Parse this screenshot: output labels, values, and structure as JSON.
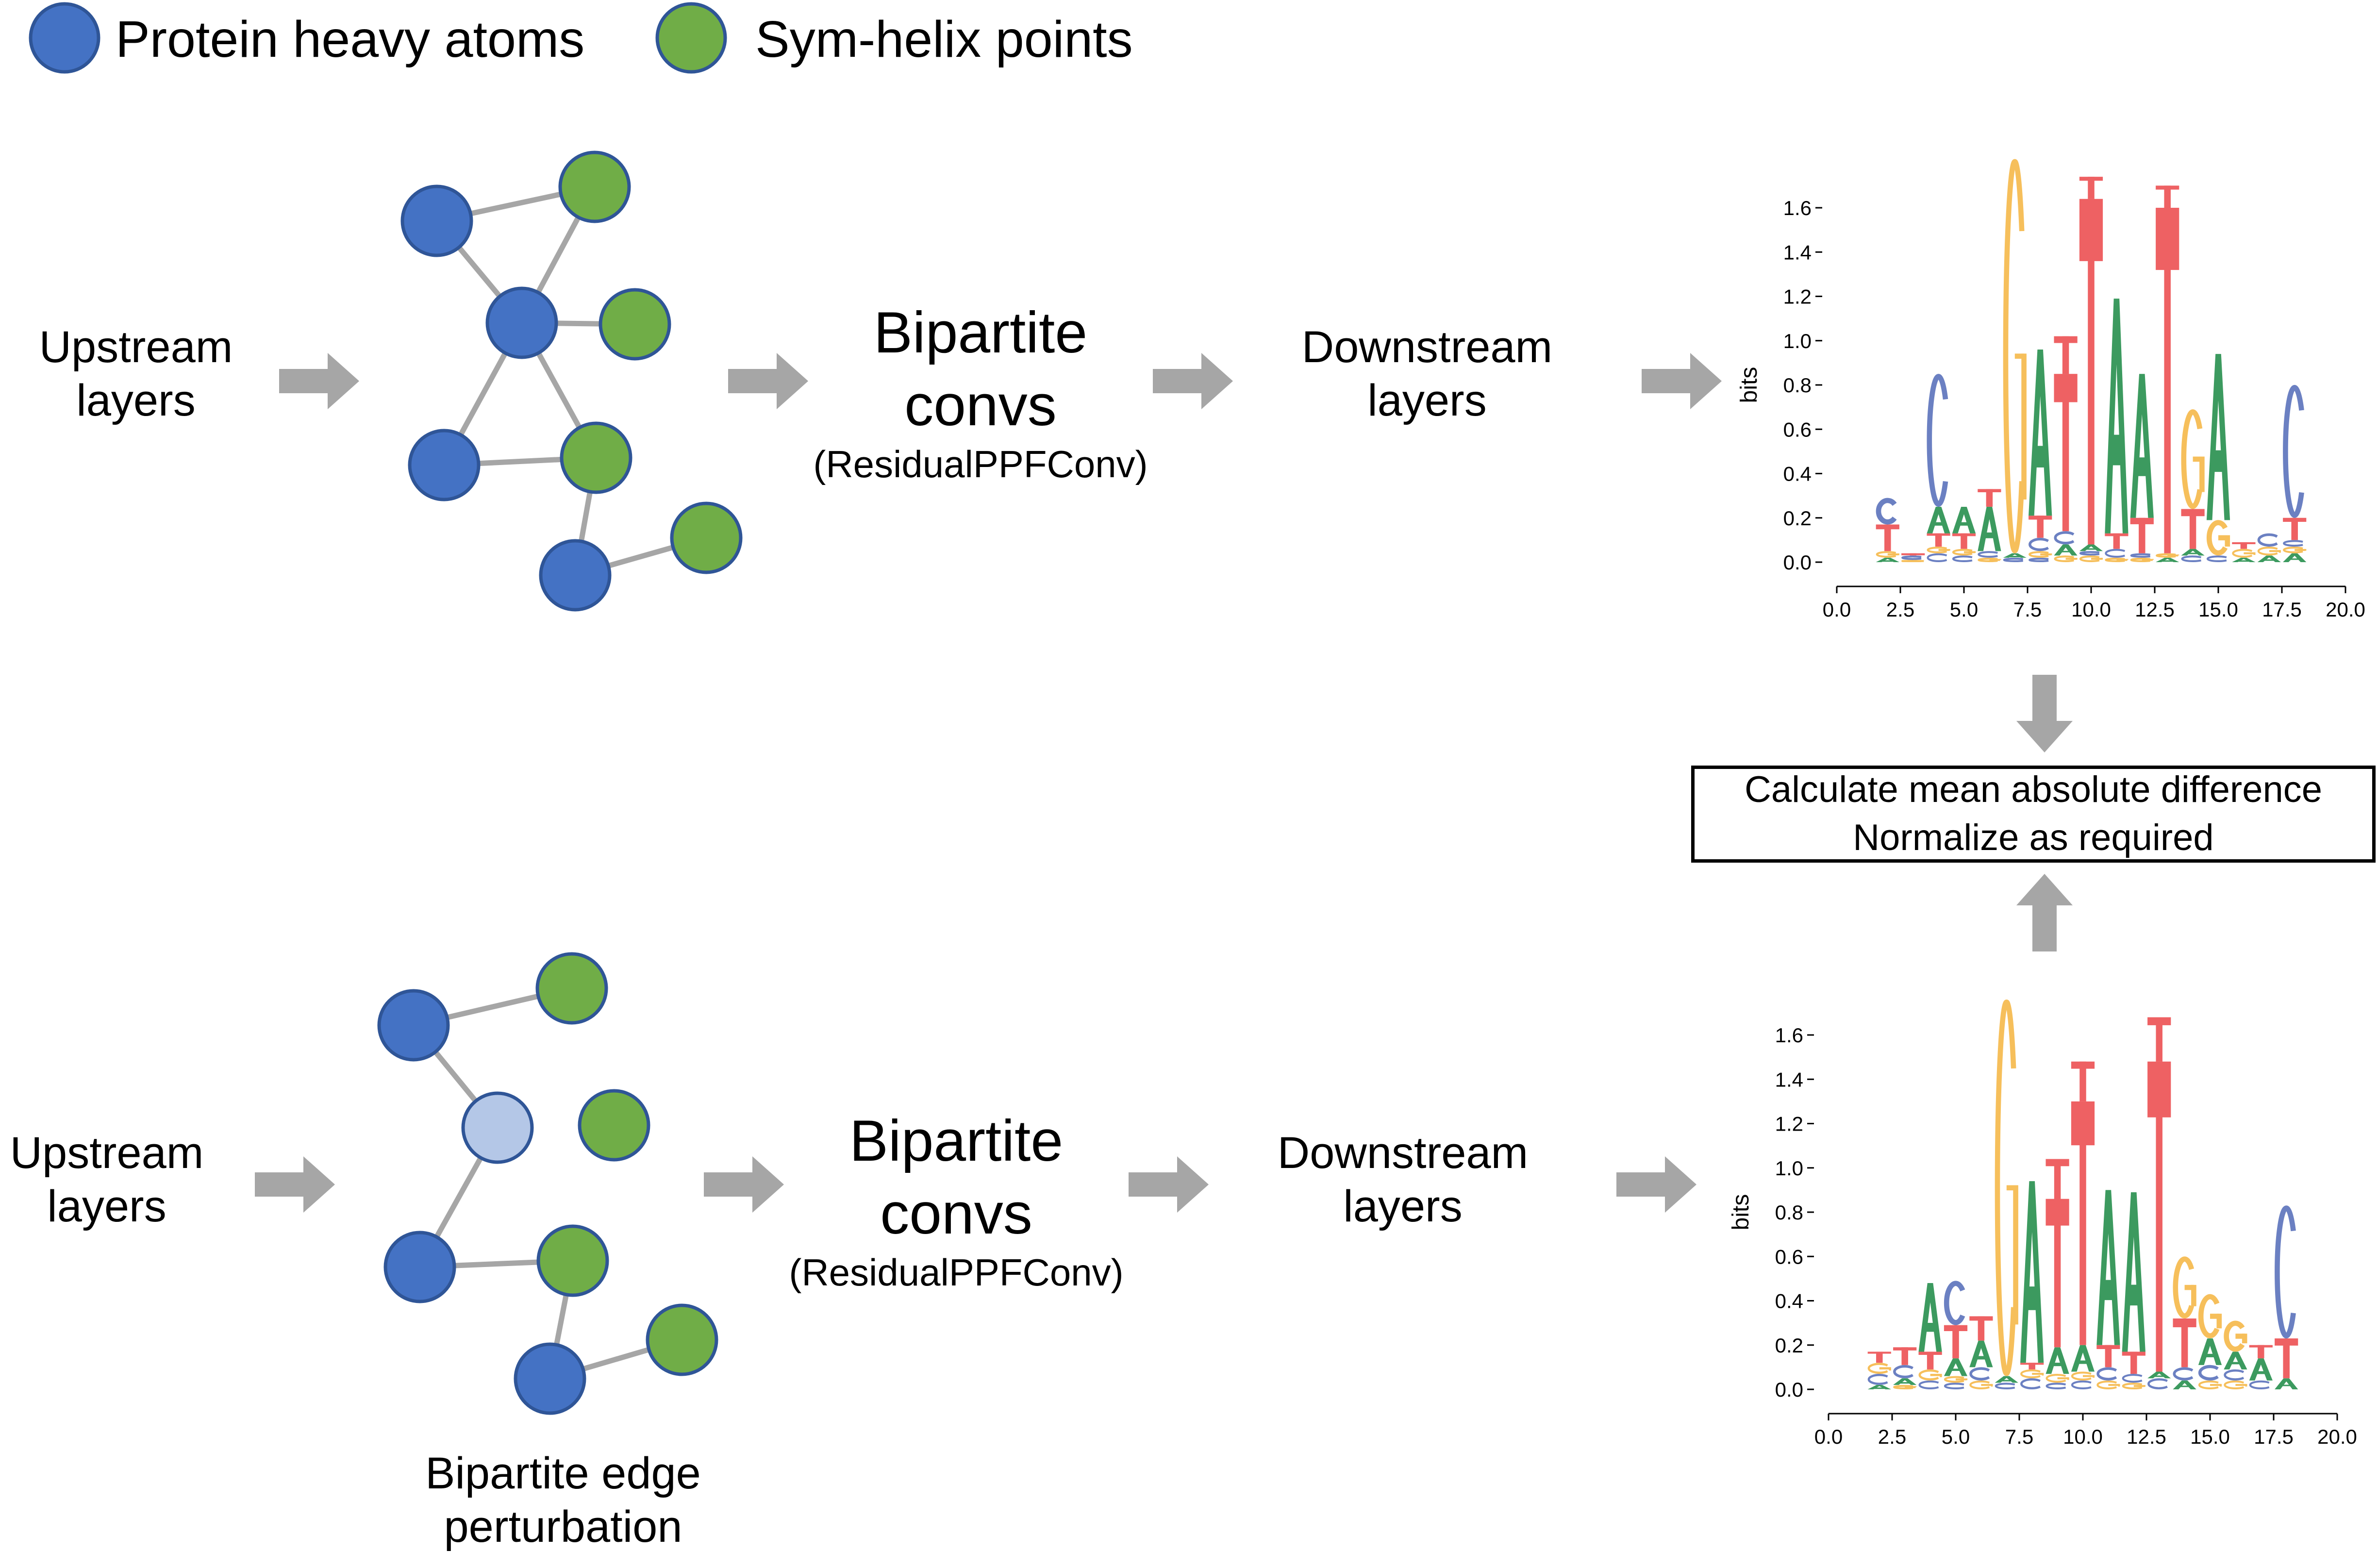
{
  "legend": {
    "protein_atoms": "Protein heavy atoms",
    "sym_helix": "Sym-helix points",
    "colors": {
      "protein": "#4472c4",
      "protein_faded": "#b4c7e7",
      "helix": "#70ad47",
      "outline": "#2f5597",
      "edge": "#a6a6a6",
      "arrow": "#a6a6a6"
    }
  },
  "top_row": {
    "upstream": [
      "Upstream",
      "layers"
    ],
    "bipartite": [
      "Bipartite",
      "convs"
    ],
    "bipartite_sub": "(ResidualPPFConv)",
    "downstream": [
      "Downstream",
      "layers"
    ]
  },
  "bottom_row": {
    "upstream": [
      "Upstream",
      "layers"
    ],
    "bipartite": [
      "Bipartite",
      "convs"
    ],
    "bipartite_sub": "(ResidualPPFConv)",
    "downstream": [
      "Downstream",
      "layers"
    ],
    "perturbation_caption": [
      "Bipartite edge",
      "perturbation"
    ]
  },
  "compare_box": {
    "line1": "Calculate mean absolute difference",
    "line2": "Normalize as required"
  },
  "logo_colors": {
    "A": "#3c9a5f",
    "C": "#6b80c2",
    "G": "#f6bf5b",
    "T": "#ee6163"
  },
  "chart_data": [
    {
      "type": "sequence-logo",
      "ylabel": "bits",
      "ylim": [
        0,
        1.7
      ],
      "xlim": [
        0,
        20
      ],
      "yticks": [
        "0.0",
        "0.2",
        "0.4",
        "0.6",
        "0.8",
        "1.0",
        "1.2",
        "1.4",
        "1.6"
      ],
      "xticks": [
        "0.0",
        "2.5",
        "5.0",
        "7.5",
        "10.0",
        "12.5",
        "15.0",
        "17.5",
        "20.0"
      ],
      "positions": [
        {
          "x": 2,
          "letters": [
            [
              "A",
              0.02
            ],
            [
              "G",
              0.03
            ],
            [
              "T",
              0.12
            ],
            [
              "C",
              0.12
            ]
          ]
        },
        {
          "x": 3,
          "letters": [
            [
              "G",
              0.01
            ],
            [
              "C",
              0.02
            ],
            [
              "T",
              0.01
            ]
          ]
        },
        {
          "x": 4,
          "letters": [
            [
              "C",
              0.04
            ],
            [
              "G",
              0.03
            ],
            [
              "T",
              0.06
            ],
            [
              "A",
              0.12
            ],
            [
              "C",
              0.6
            ]
          ]
        },
        {
          "x": 5,
          "letters": [
            [
              "C",
              0.03
            ],
            [
              "G",
              0.03
            ],
            [
              "T",
              0.07
            ],
            [
              "A",
              0.12
            ]
          ]
        },
        {
          "x": 6,
          "letters": [
            [
              "G",
              0.02
            ],
            [
              "C",
              0.03
            ],
            [
              "A",
              0.2
            ],
            [
              "T",
              0.08
            ]
          ]
        },
        {
          "x": 7,
          "letters": [
            [
              "C",
              0.02
            ],
            [
              "A",
              0.02
            ],
            [
              "G",
              1.78
            ]
          ]
        },
        {
          "x": 8,
          "letters": [
            [
              "C",
              0.02
            ],
            [
              "G",
              0.03
            ],
            [
              "C",
              0.06
            ],
            [
              "T",
              0.1
            ],
            [
              "A",
              0.75
            ]
          ]
        },
        {
          "x": 9,
          "letters": [
            [
              "G",
              0.03
            ],
            [
              "A",
              0.05
            ],
            [
              "C",
              0.06
            ],
            [
              "T",
              0.71
            ],
            [
              "T",
              0.17
            ]
          ]
        },
        {
          "x": 10,
          "letters": [
            [
              "G",
              0.03
            ],
            [
              "C",
              0.02
            ],
            [
              "A",
              0.03
            ],
            [
              "T",
              1.56
            ],
            [
              "T",
              0.1
            ]
          ]
        },
        {
          "x": 11,
          "letters": [
            [
              "G",
              0.02
            ],
            [
              "C",
              0.04
            ],
            [
              "T",
              0.07
            ],
            [
              "A",
              1.06
            ]
          ]
        },
        {
          "x": 12,
          "letters": [
            [
              "G",
              0.02
            ],
            [
              "C",
              0.02
            ],
            [
              "T",
              0.16
            ],
            [
              "A",
              0.65
            ]
          ]
        },
        {
          "x": 13,
          "letters": [
            [
              "A",
              0.02
            ],
            [
              "G",
              0.02
            ],
            [
              "T",
              1.56
            ],
            [
              "T",
              0.1
            ]
          ]
        },
        {
          "x": 14,
          "letters": [
            [
              "C",
              0.03
            ],
            [
              "A",
              0.03
            ],
            [
              "T",
              0.18
            ],
            [
              "G",
              0.45
            ]
          ]
        },
        {
          "x": 15,
          "letters": [
            [
              "C",
              0.03
            ],
            [
              "G",
              0.16
            ],
            [
              "A",
              0.75
            ]
          ]
        },
        {
          "x": 16,
          "letters": [
            [
              "A",
              0.02
            ],
            [
              "G",
              0.04
            ],
            [
              "T",
              0.03
            ]
          ]
        },
        {
          "x": 17,
          "letters": [
            [
              "A",
              0.03
            ],
            [
              "G",
              0.04
            ],
            [
              "C",
              0.06
            ]
          ]
        },
        {
          "x": 18,
          "letters": [
            [
              "A",
              0.04
            ],
            [
              "G",
              0.03
            ],
            [
              "C",
              0.03
            ],
            [
              "T",
              0.1
            ],
            [
              "C",
              0.6
            ]
          ]
        }
      ]
    },
    {
      "type": "sequence-logo",
      "ylabel": "bits",
      "ylim": [
        0,
        1.7
      ],
      "xlim": [
        0,
        20
      ],
      "yticks": [
        "0.0",
        "0.2",
        "0.4",
        "0.6",
        "0.8",
        "1.0",
        "1.2",
        "1.4",
        "1.6"
      ],
      "xticks": [
        "0.0",
        "2.5",
        "5.0",
        "7.5",
        "10.0",
        "12.5",
        "15.0",
        "17.5",
        "20.0"
      ],
      "positions": [
        {
          "x": 2,
          "letters": [
            [
              "A",
              0.02
            ],
            [
              "C",
              0.05
            ],
            [
              "G",
              0.05
            ],
            [
              "T",
              0.05
            ]
          ]
        },
        {
          "x": 3,
          "letters": [
            [
              "G",
              0.02
            ],
            [
              "A",
              0.03
            ],
            [
              "C",
              0.06
            ],
            [
              "T",
              0.08
            ]
          ]
        },
        {
          "x": 4,
          "letters": [
            [
              "C",
              0.04
            ],
            [
              "G",
              0.05
            ],
            [
              "T",
              0.08
            ],
            [
              "A",
              0.31
            ]
          ]
        },
        {
          "x": 5,
          "letters": [
            [
              "C",
              0.03
            ],
            [
              "G",
              0.03
            ],
            [
              "A",
              0.08
            ],
            [
              "T",
              0.15
            ],
            [
              "C",
              0.2
            ]
          ]
        },
        {
          "x": 6,
          "letters": [
            [
              "G",
              0.04
            ],
            [
              "C",
              0.06
            ],
            [
              "A",
              0.12
            ],
            [
              "T",
              0.11
            ]
          ]
        },
        {
          "x": 7,
          "letters": [
            [
              "C",
              0.03
            ],
            [
              "A",
              0.03
            ],
            [
              "G",
              1.7
            ]
          ]
        },
        {
          "x": 8,
          "letters": [
            [
              "C",
              0.05
            ],
            [
              "G",
              0.04
            ],
            [
              "T",
              0.03
            ],
            [
              "A",
              0.82
            ]
          ]
        },
        {
          "x": 9,
          "letters": [
            [
              "C",
              0.03
            ],
            [
              "G",
              0.04
            ],
            [
              "A",
              0.12
            ],
            [
              "T",
              0.67
            ],
            [
              "T",
              0.18
            ]
          ]
        },
        {
          "x": 10,
          "letters": [
            [
              "C",
              0.04
            ],
            [
              "G",
              0.04
            ],
            [
              "A",
              0.12
            ],
            [
              "T",
              1.1
            ],
            [
              "T",
              0.18
            ]
          ]
        },
        {
          "x": 11,
          "letters": [
            [
              "G",
              0.04
            ],
            [
              "C",
              0.06
            ],
            [
              "T",
              0.1
            ],
            [
              "A",
              0.7
            ]
          ]
        },
        {
          "x": 12,
          "letters": [
            [
              "G",
              0.03
            ],
            [
              "C",
              0.04
            ],
            [
              "T",
              0.1
            ],
            [
              "A",
              0.72
            ]
          ]
        },
        {
          "x": 13,
          "letters": [
            [
              "C",
              0.05
            ],
            [
              "A",
              0.03
            ],
            [
              "T",
              1.4
            ],
            [
              "T",
              0.2
            ]
          ]
        },
        {
          "x": 14,
          "letters": [
            [
              "A",
              0.04
            ],
            [
              "C",
              0.06
            ],
            [
              "T",
              0.22
            ],
            [
              "G",
              0.28
            ]
          ]
        },
        {
          "x": 15,
          "letters": [
            [
              "G",
              0.04
            ],
            [
              "C",
              0.07
            ],
            [
              "A",
              0.12
            ],
            [
              "G",
              0.2
            ]
          ]
        },
        {
          "x": 16,
          "letters": [
            [
              "G",
              0.04
            ],
            [
              "C",
              0.05
            ],
            [
              "A",
              0.08
            ],
            [
              "G",
              0.14
            ]
          ]
        },
        {
          "x": 17,
          "letters": [
            [
              "C",
              0.04
            ],
            [
              "A",
              0.1
            ],
            [
              "T",
              0.06
            ]
          ]
        },
        {
          "x": 18,
          "letters": [
            [
              "A",
              0.05
            ],
            [
              "T",
              0.18
            ],
            [
              "C",
              0.6
            ]
          ]
        }
      ]
    }
  ]
}
